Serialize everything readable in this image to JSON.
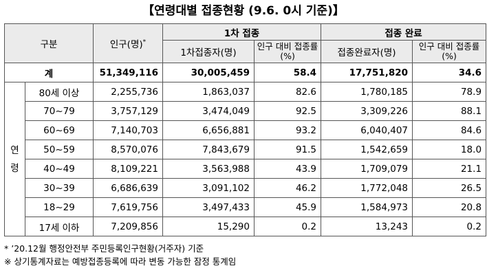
{
  "title": "【연령대별 접종현황 (9.6. 0시 기준)】",
  "header": {
    "category": "구분",
    "population": "인구(명)",
    "population_mark": "*",
    "first_dose_group": "1차 접종",
    "complete_group": "접종 완료",
    "first_dose_people": "1차접종자(명)",
    "first_dose_rate": "인구 대비 접종률(%)",
    "complete_people": "접종완료자(명)",
    "complete_rate": "인구 대비 접종률(%)"
  },
  "total": {
    "label": "계",
    "population": "51,349,116",
    "first_people": "30,005,459",
    "first_rate": "58.4",
    "complete_people": "17,751,820",
    "complete_rate": "34.6"
  },
  "group_label_1": "연",
  "group_label_2": "령",
  "rows": [
    {
      "age": "80세 이상",
      "population": "2,255,736",
      "first_people": "1,863,037",
      "first_rate": "82.6",
      "complete_people": "1,780,185",
      "complete_rate": "78.9"
    },
    {
      "age": "70~79",
      "population": "3,757,129",
      "first_people": "3,474,049",
      "first_rate": "92.5",
      "complete_people": "3,309,226",
      "complete_rate": "88.1"
    },
    {
      "age": "60~69",
      "population": "7,140,703",
      "first_people": "6,656,881",
      "first_rate": "93.2",
      "complete_people": "6,040,407",
      "complete_rate": "84.6"
    },
    {
      "age": "50~59",
      "population": "8,570,076",
      "first_people": "7,843,679",
      "first_rate": "91.5",
      "complete_people": "1,542,659",
      "complete_rate": "18.0"
    },
    {
      "age": "40~49",
      "population": "8,109,221",
      "first_people": "3,563,988",
      "first_rate": "43.9",
      "complete_people": "1,709,079",
      "complete_rate": "21.1"
    },
    {
      "age": "30~39",
      "population": "6,686,639",
      "first_people": "3,091,102",
      "first_rate": "46.2",
      "complete_people": "1,772,048",
      "complete_rate": "26.5"
    },
    {
      "age": "18~29",
      "population": "7,619,756",
      "first_people": "3,497,433",
      "first_rate": "45.9",
      "complete_people": "1,584,973",
      "complete_rate": "20.8"
    },
    {
      "age": "17세 이하",
      "population": "7,209,856",
      "first_people": "15,290",
      "first_rate": "0.2",
      "complete_people": "13,243",
      "complete_rate": "0.2"
    }
  ],
  "notes": [
    "* ’20.12월 행정안전부 주민등록인구현황(거주자) 기준",
    "※ 상기통계자료는 예방접종등록에 따라 변동 가능한 잠정 통계임"
  ]
}
